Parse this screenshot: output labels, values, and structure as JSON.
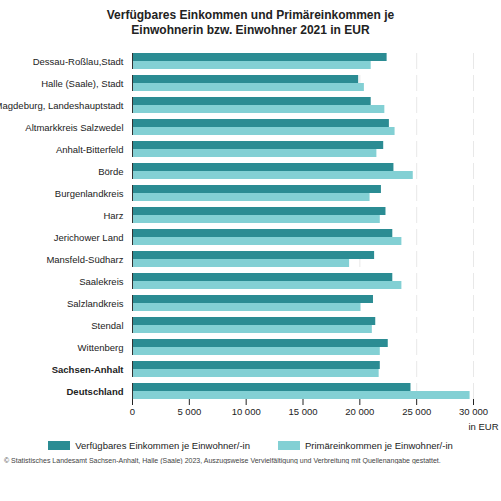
{
  "chart_data": {
    "type": "bar",
    "orientation": "horizontal",
    "title": "Verfügbares Einkommen und Primäreinkommen je Einwohnerin bzw. Einwohner 2021 in EUR",
    "x_label": "in EUR",
    "caption": "© Statistisches Landesamt Sachsen-Anhalt, Halle (Saale) 2023, Auszugsweise Vervielfältigung und Verbreitung mit Quellenangabe gestattet.",
    "categories": [
      "Dessau-Roßlau,Stadt",
      "Halle (Saale), Stadt",
      "Magdeburg, Landeshauptstadt",
      "Altmarkkreis Salzwedel",
      "Anhalt-Bitterfeld",
      "Börde",
      "Burgenlandkreis",
      "Harz",
      "Jerichower Land",
      "Mansfeld-Südharz",
      "Saalekreis",
      "Salzlandkreis",
      "Stendal",
      "Wittenberg",
      "Sachsen-Anhalt",
      "Deutschland"
    ],
    "series": [
      {
        "name": "Verfügbares Einkommen je Einwohner/-in",
        "color": "#2b8c93",
        "values": [
          22400,
          19900,
          21000,
          22600,
          22100,
          23000,
          21900,
          22300,
          22900,
          21300,
          22900,
          21200,
          21400,
          22500,
          21800,
          24500
        ]
      },
      {
        "name": "Primäreinkommen je Einwohner/-in",
        "color": "#83d0d4",
        "values": [
          21000,
          20400,
          22200,
          23100,
          21500,
          24700,
          20900,
          21800,
          23700,
          19100,
          23700,
          20100,
          21100,
          21800,
          21700,
          29700
        ]
      }
    ],
    "xlim": [
      0,
      30000
    ],
    "xticks": [
      0,
      {
        "value": 5000,
        "label": "5 000"
      },
      {
        "value": 10000,
        "label": "10 000"
      },
      {
        "value": 15000,
        "label": "15 000"
      },
      {
        "value": 20000,
        "label": "20 000"
      },
      {
        "value": 25000,
        "label": "25 000"
      },
      {
        "value": 30000,
        "label": "30 000"
      }
    ],
    "grid": true,
    "legend": "bottom"
  }
}
